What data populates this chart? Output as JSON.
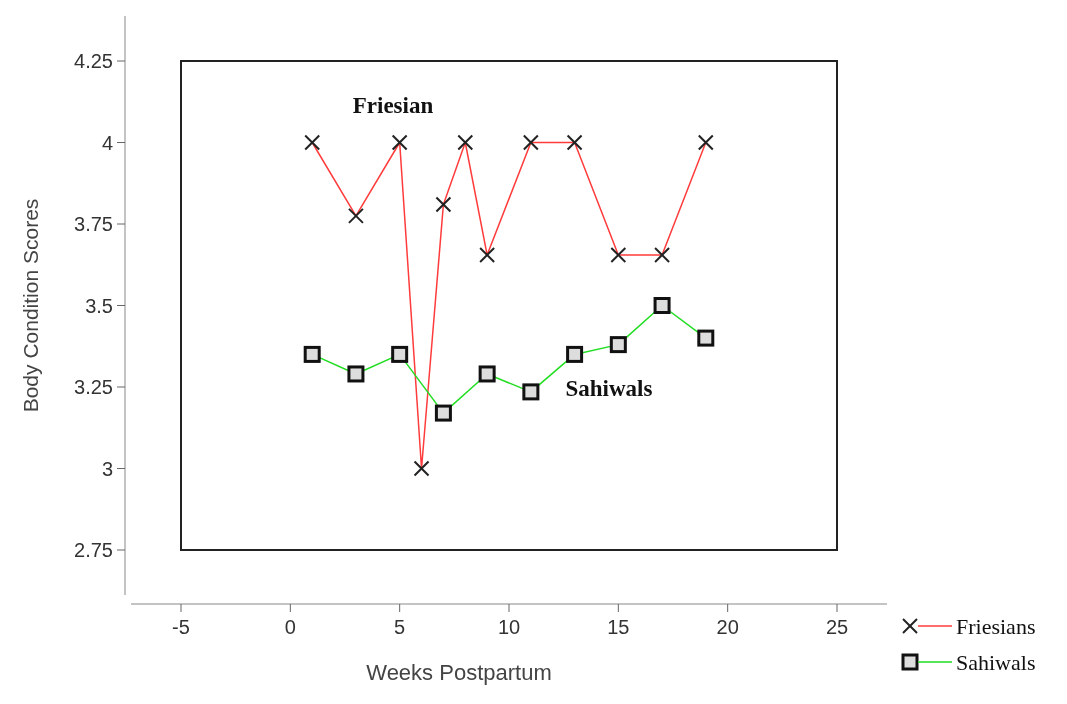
{
  "chart_data": {
    "type": "line",
    "xlabel": "Weeks Postpartum",
    "ylabel": "Body Condition Scores",
    "xlim": [
      -5,
      25
    ],
    "xticks": [
      -5,
      0,
      5,
      10,
      15,
      20,
      25
    ],
    "ylim": [
      2.75,
      4.25
    ],
    "yticks": [
      2.75,
      3,
      3.25,
      3.5,
      3.75,
      4,
      4.25
    ],
    "grid": false,
    "legend": "bottom right",
    "series": [
      {
        "name": "Friesians",
        "color": "#ff3b3b",
        "marker": "cross",
        "x": [
          1,
          3,
          5,
          6,
          7,
          8,
          9,
          11,
          13,
          15,
          17,
          19
        ],
        "values": [
          4,
          3.775,
          4,
          3,
          3.81,
          4,
          3.655,
          4,
          4,
          3.655,
          3.655,
          4
        ]
      },
      {
        "name": "Sahiwals",
        "color": "#22dd22",
        "marker": "square",
        "x": [
          1,
          3,
          5,
          7,
          9,
          11,
          13,
          15,
          17,
          19
        ],
        "values": [
          3.35,
          3.29,
          3.35,
          3.17,
          3.29,
          3.235,
          3.35,
          3.38,
          3.5,
          3.4
        ]
      }
    ],
    "annotations": [
      "Friesian",
      "Sahiwals"
    ]
  }
}
